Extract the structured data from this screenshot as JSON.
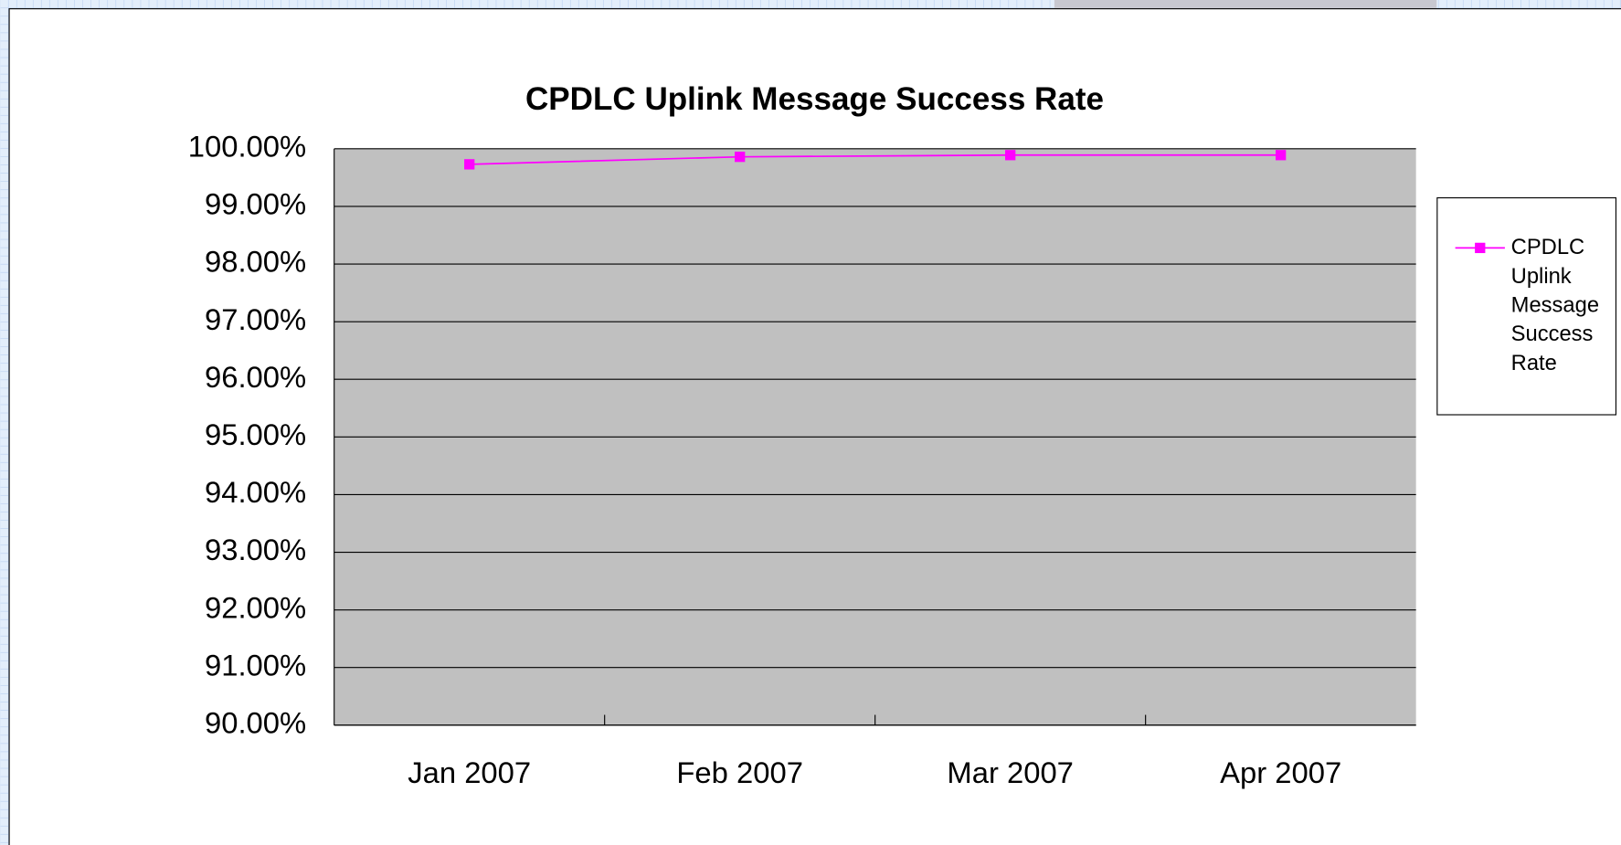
{
  "chart_data": {
    "type": "line",
    "title": "CPDLC Uplink Message Success Rate",
    "categories": [
      "Jan 2007",
      "Feb 2007",
      "Mar 2007",
      "Apr 2007"
    ],
    "series": [
      {
        "name": "CPDLC Uplink Message Success Rate",
        "color": "#ff00ff",
        "values": [
          99.73,
          99.86,
          99.89,
          99.89
        ]
      }
    ],
    "ylim": [
      90,
      100
    ],
    "yticks": [
      {
        "value": 90,
        "label": "90.00%"
      },
      {
        "value": 91,
        "label": "91.00%"
      },
      {
        "value": 92,
        "label": "92.00%"
      },
      {
        "value": 93,
        "label": "93.00%"
      },
      {
        "value": 94,
        "label": "94.00%"
      },
      {
        "value": 95,
        "label": "95.00%"
      },
      {
        "value": 96,
        "label": "96.00%"
      },
      {
        "value": 97,
        "label": "97.00%"
      },
      {
        "value": 98,
        "label": "98.00%"
      },
      {
        "value": 99,
        "label": "99.00%"
      },
      {
        "value": 100,
        "label": "100.00%"
      }
    ],
    "grid": true,
    "legend": "right"
  }
}
